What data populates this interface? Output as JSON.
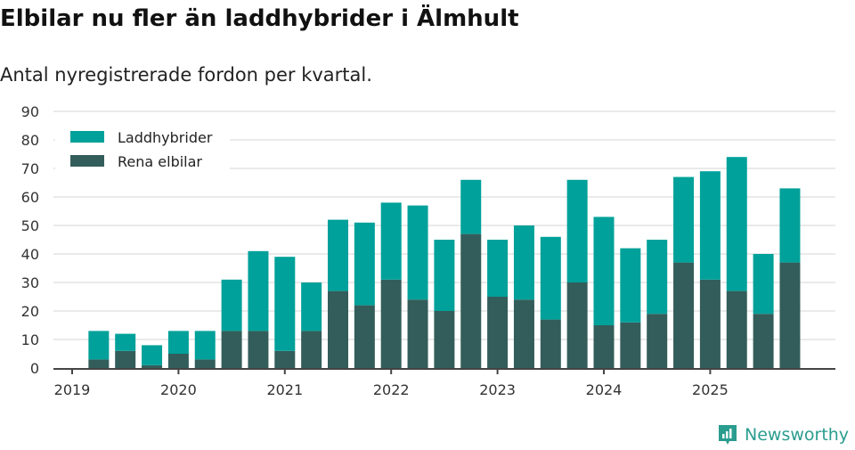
{
  "title": "Elbilar nu fler än laddhybrider i Älmhult",
  "subtitle": "Antal nyregistrerade fordon per kvartal.",
  "brand": "Newsworthy",
  "colors": {
    "laddhybrider": "#00a19a",
    "elbilar": "#335d5a",
    "grid": "#e3e3e3",
    "axis": "#444444"
  },
  "chart_data": {
    "type": "bar",
    "stacked": true,
    "title": "Elbilar nu fler än laddhybrider i Älmhult",
    "subtitle": "Antal nyregistrerade fordon per kvartal.",
    "xlabel": "",
    "ylabel": "",
    "ylim": [
      0,
      90
    ],
    "yticks": [
      0,
      10,
      20,
      30,
      40,
      50,
      60,
      70,
      80,
      90
    ],
    "xticks": [
      "2019",
      "2020",
      "2021",
      "2022",
      "2023",
      "2024",
      "2025"
    ],
    "legend_position": "top-left",
    "categories": [
      "2019Q1",
      "2019Q2",
      "2019Q3",
      "2019Q4",
      "2020Q1",
      "2020Q2",
      "2020Q3",
      "2020Q4",
      "2021Q1",
      "2021Q2",
      "2021Q3",
      "2021Q4",
      "2022Q1",
      "2022Q2",
      "2022Q3",
      "2022Q4",
      "2023Q1",
      "2023Q2",
      "2023Q3",
      "2023Q4",
      "2024Q1",
      "2024Q2",
      "2024Q3",
      "2024Q4",
      "2025Q1",
      "2025Q2",
      "2025Q3",
      "2025Q4"
    ],
    "series": [
      {
        "name": "Rena elbilar",
        "values": [
          0,
          3,
          6,
          1,
          5,
          3,
          13,
          13,
          6,
          13,
          27,
          22,
          31,
          24,
          20,
          47,
          25,
          24,
          17,
          30,
          15,
          16,
          19,
          37,
          31,
          27,
          19,
          37
        ]
      },
      {
        "name": "Laddhybrider",
        "values": [
          0,
          10,
          6,
          7,
          8,
          10,
          18,
          28,
          33,
          17,
          25,
          29,
          27,
          33,
          25,
          19,
          20,
          26,
          29,
          36,
          38,
          26,
          26,
          30,
          38,
          47,
          21,
          26
        ]
      }
    ]
  }
}
